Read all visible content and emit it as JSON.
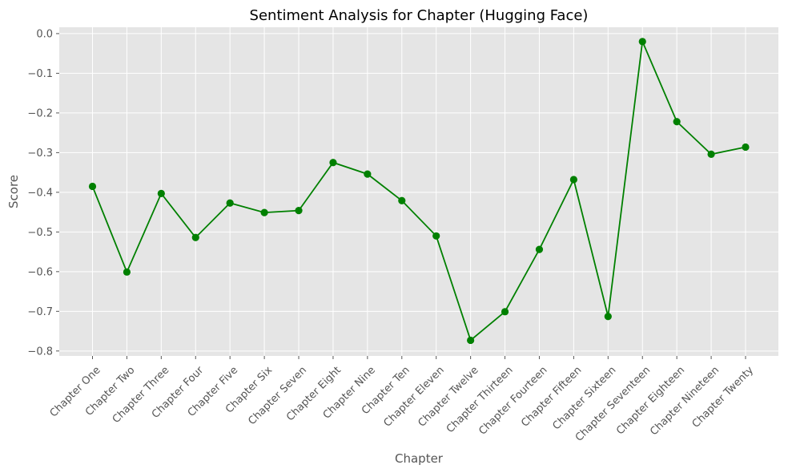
{
  "chart_data": {
    "type": "line",
    "title": "Sentiment Analysis for Chapter (Hugging Face)",
    "xlabel": "Chapter",
    "ylabel": "Score",
    "categories": [
      "Chapter One",
      "Chapter Two",
      "Chapter Three",
      "Chapter Four",
      "Chapter Five",
      "Chapter Six",
      "Chapter Seven",
      "Chapter Eight",
      "Chapter Nine",
      "Chapter Ten",
      "Chapter Eleven",
      "Chapter Twelve",
      "Chapter Thirteen",
      "Chapter Fourteen",
      "Chapter Fifteen",
      "Chapter Sixteen",
      "Chapter Seventeen",
      "Chapter Eighteen",
      "Chapter Nineteen",
      "Chapter Twenty"
    ],
    "series": [
      {
        "values": [
          -0.385,
          -0.601,
          -0.403,
          -0.514,
          -0.427,
          -0.451,
          -0.446,
          -0.325,
          -0.354,
          -0.421,
          -0.51,
          -0.773,
          -0.701,
          -0.544,
          -0.368,
          -0.713,
          -0.02,
          -0.222,
          -0.304,
          -0.286
        ],
        "color": "#008000"
      }
    ],
    "yticks": [
      0.0,
      -0.1,
      -0.2,
      -0.3,
      -0.4,
      -0.5,
      -0.6,
      -0.7,
      -0.8
    ],
    "ytick_labels": [
      "0.0",
      "−0.1",
      "−0.2",
      "−0.3",
      "−0.4",
      "−0.5",
      "−0.6",
      "−0.7",
      "−0.8"
    ],
    "ylim": [
      -0.8125,
      0.016
    ],
    "grid": true,
    "background": "#e5e5e5"
  }
}
